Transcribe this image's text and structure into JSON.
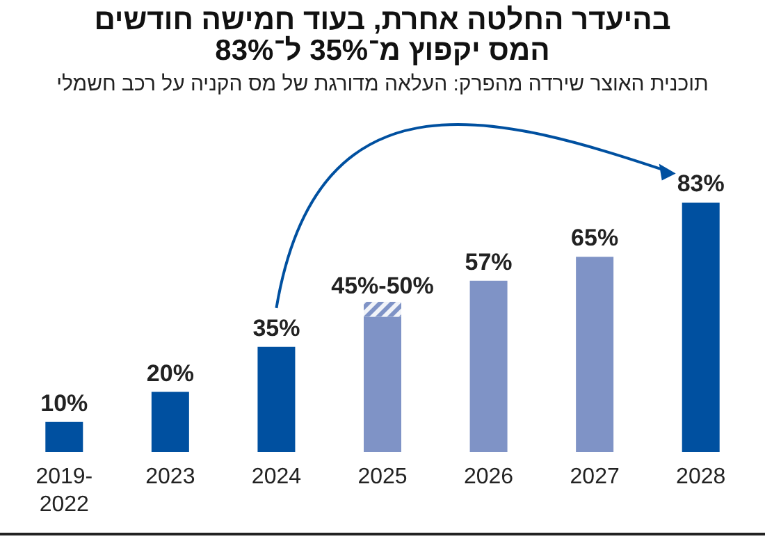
{
  "chart_data": {
    "type": "bar",
    "title": "בהיעדר החלטה אחרת, בעוד חמישה חודשים המס יקפוץ מ־35% ל־83%",
    "subtitle": "תוכנית האוצר שירדה מהפרק: העלאה מדורגת של מס הקניה על רכב חשמלי",
    "categories": [
      "2019-2022",
      "2023",
      "2024",
      "2025",
      "2026",
      "2027",
      "2028"
    ],
    "stacked": true,
    "tick_labels": "x",
    "series": [
      {
        "values": [
          10,
          20,
          35,
          45,
          57,
          65,
          83
        ],
        "colors": [
          "#0050a0",
          "#0050a0",
          "#0050a0",
          "#7f93c6",
          "#7f93c6",
          "#7f93c6",
          "#0050a0"
        ],
        "value_labels": [
          "10%",
          "20%",
          "35%",
          null,
          "57%",
          "65%",
          "83%"
        ]
      },
      {
        "values": [
          null,
          null,
          null,
          5,
          null,
          null,
          null
        ],
        "color": "#7f93c6"
      }
    ],
    "annotations": [
      {
        "text": "45%-50%",
        "x": "2025",
        "y": 50
      }
    ]
  }
}
